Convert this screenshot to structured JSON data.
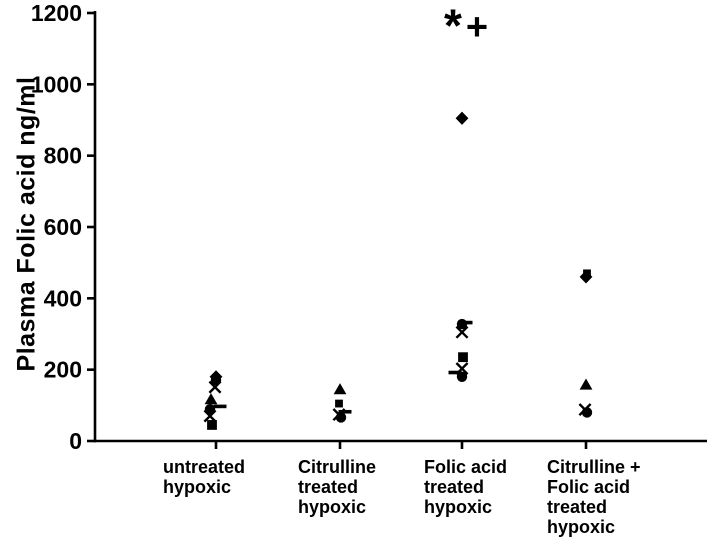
{
  "chart_data": {
    "type": "scatter",
    "title": "",
    "xlabel": "",
    "ylabel": "Plasma Folic acid ng/ml",
    "ylim": [
      0,
      1200
    ],
    "yticks": [
      0,
      200,
      400,
      600,
      800,
      1000,
      1200
    ],
    "grid": false,
    "background_color": "#ffffff",
    "marker_color": "#000000",
    "legend": "none",
    "annotations": [
      {
        "symbol": "*",
        "group_index": 2,
        "value": 1165,
        "dx": -9
      },
      {
        "symbol": "+",
        "group_index": 2,
        "value": 1160,
        "dx": 15
      }
    ],
    "groups": [
      {
        "label_lines": [
          "untreated",
          "hypoxic"
        ],
        "points": [
          {
            "marker": "diamond",
            "value": 180,
            "dx": 0
          },
          {
            "marker": "circle",
            "value": 171,
            "dx": 0
          },
          {
            "marker": "x",
            "value": 151,
            "dx": -1
          },
          {
            "marker": "triangle",
            "value": 117,
            "dx": -5
          },
          {
            "marker": "dash",
            "value": 97,
            "dx": 4
          },
          {
            "marker": "circle",
            "value": 89,
            "dx": -6
          },
          {
            "marker": "x",
            "value": 70,
            "dx": -6
          },
          {
            "marker": "square",
            "value": 45,
            "dx": -4
          }
        ]
      },
      {
        "label_lines": [
          "Citrulline",
          "treated",
          "hypoxic"
        ],
        "points": [
          {
            "marker": "triangle",
            "value": 145,
            "dx": 0
          },
          {
            "marker": "square_small",
            "value": 105,
            "dx": -1
          },
          {
            "marker": "dash",
            "value": 82,
            "dx": 5
          },
          {
            "marker": "x",
            "value": 74,
            "dx": -1
          },
          {
            "marker": "circle",
            "value": 66,
            "dx": 1
          }
        ]
      },
      {
        "label_lines": [
          "Folic acid",
          "treated",
          "hypoxic"
        ],
        "points": [
          {
            "marker": "diamond",
            "value": 905,
            "dx": 0
          },
          {
            "marker": "dash",
            "value": 332,
            "dx": 4
          },
          {
            "marker": "circle",
            "value": 328,
            "dx": 0
          },
          {
            "marker": "x",
            "value": 305,
            "dx": 0
          },
          {
            "marker": "square",
            "value": 235,
            "dx": 1
          },
          {
            "marker": "x",
            "value": 203,
            "dx": 0
          },
          {
            "marker": "dash",
            "value": 192,
            "dx": -7
          },
          {
            "marker": "circle",
            "value": 180,
            "dx": 0
          }
        ]
      },
      {
        "label_lines": [
          "Citrulline +",
          "Folic acid",
          "treated",
          "hypoxic"
        ],
        "points": [
          {
            "marker": "square_small",
            "value": 470,
            "dx": 1
          },
          {
            "marker": "diamond",
            "value": 460,
            "dx": 0
          },
          {
            "marker": "triangle",
            "value": 158,
            "dx": 0
          },
          {
            "marker": "x",
            "value": 88,
            "dx": -1
          },
          {
            "marker": "circle",
            "value": 80,
            "dx": 1
          }
        ]
      }
    ]
  }
}
